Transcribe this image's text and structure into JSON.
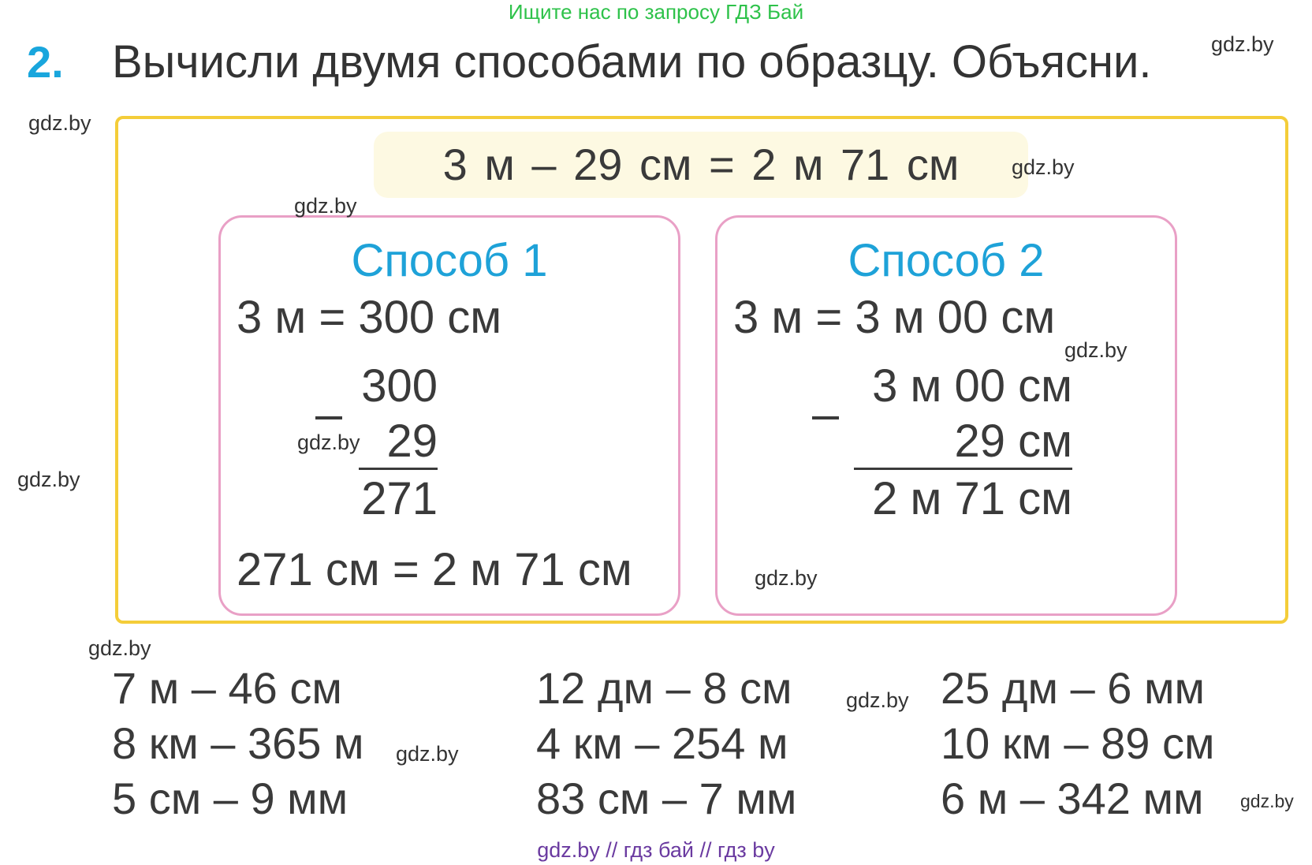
{
  "banner": "Ищите нас по запросу ГДЗ Бай",
  "task": {
    "number": "2.",
    "title": "Вычисли двумя способами по образцу. Объясни."
  },
  "example": {
    "formula": "3 м – 29 см = 2 м 71 см",
    "method1": {
      "title": "Способ 1",
      "line1": "3 м = 300 см",
      "minuend": "300",
      "subtrahend": "29",
      "result": "271",
      "conclusion": "271 см = 2 м 71 см"
    },
    "method2": {
      "title": "Способ 2",
      "line1": "3 м = 3 м 00 см",
      "minuend": "3 м 00 см",
      "subtrahend": "29 см",
      "result": "2 м 71 см"
    }
  },
  "exercises": {
    "col1": [
      "7 м – 46 см",
      "8 км – 365 м",
      "5 см – 9 мм"
    ],
    "col2": [
      "12 дм – 8 см",
      "4 км – 254 м",
      "83 см – 7 мм"
    ],
    "col3": [
      "25 дм – 6 мм",
      "10 км – 89 см",
      "6 м – 342 мм"
    ]
  },
  "watermark": "gdz.by",
  "footer": "gdz.by  //  гдз бай  //  гдз by"
}
